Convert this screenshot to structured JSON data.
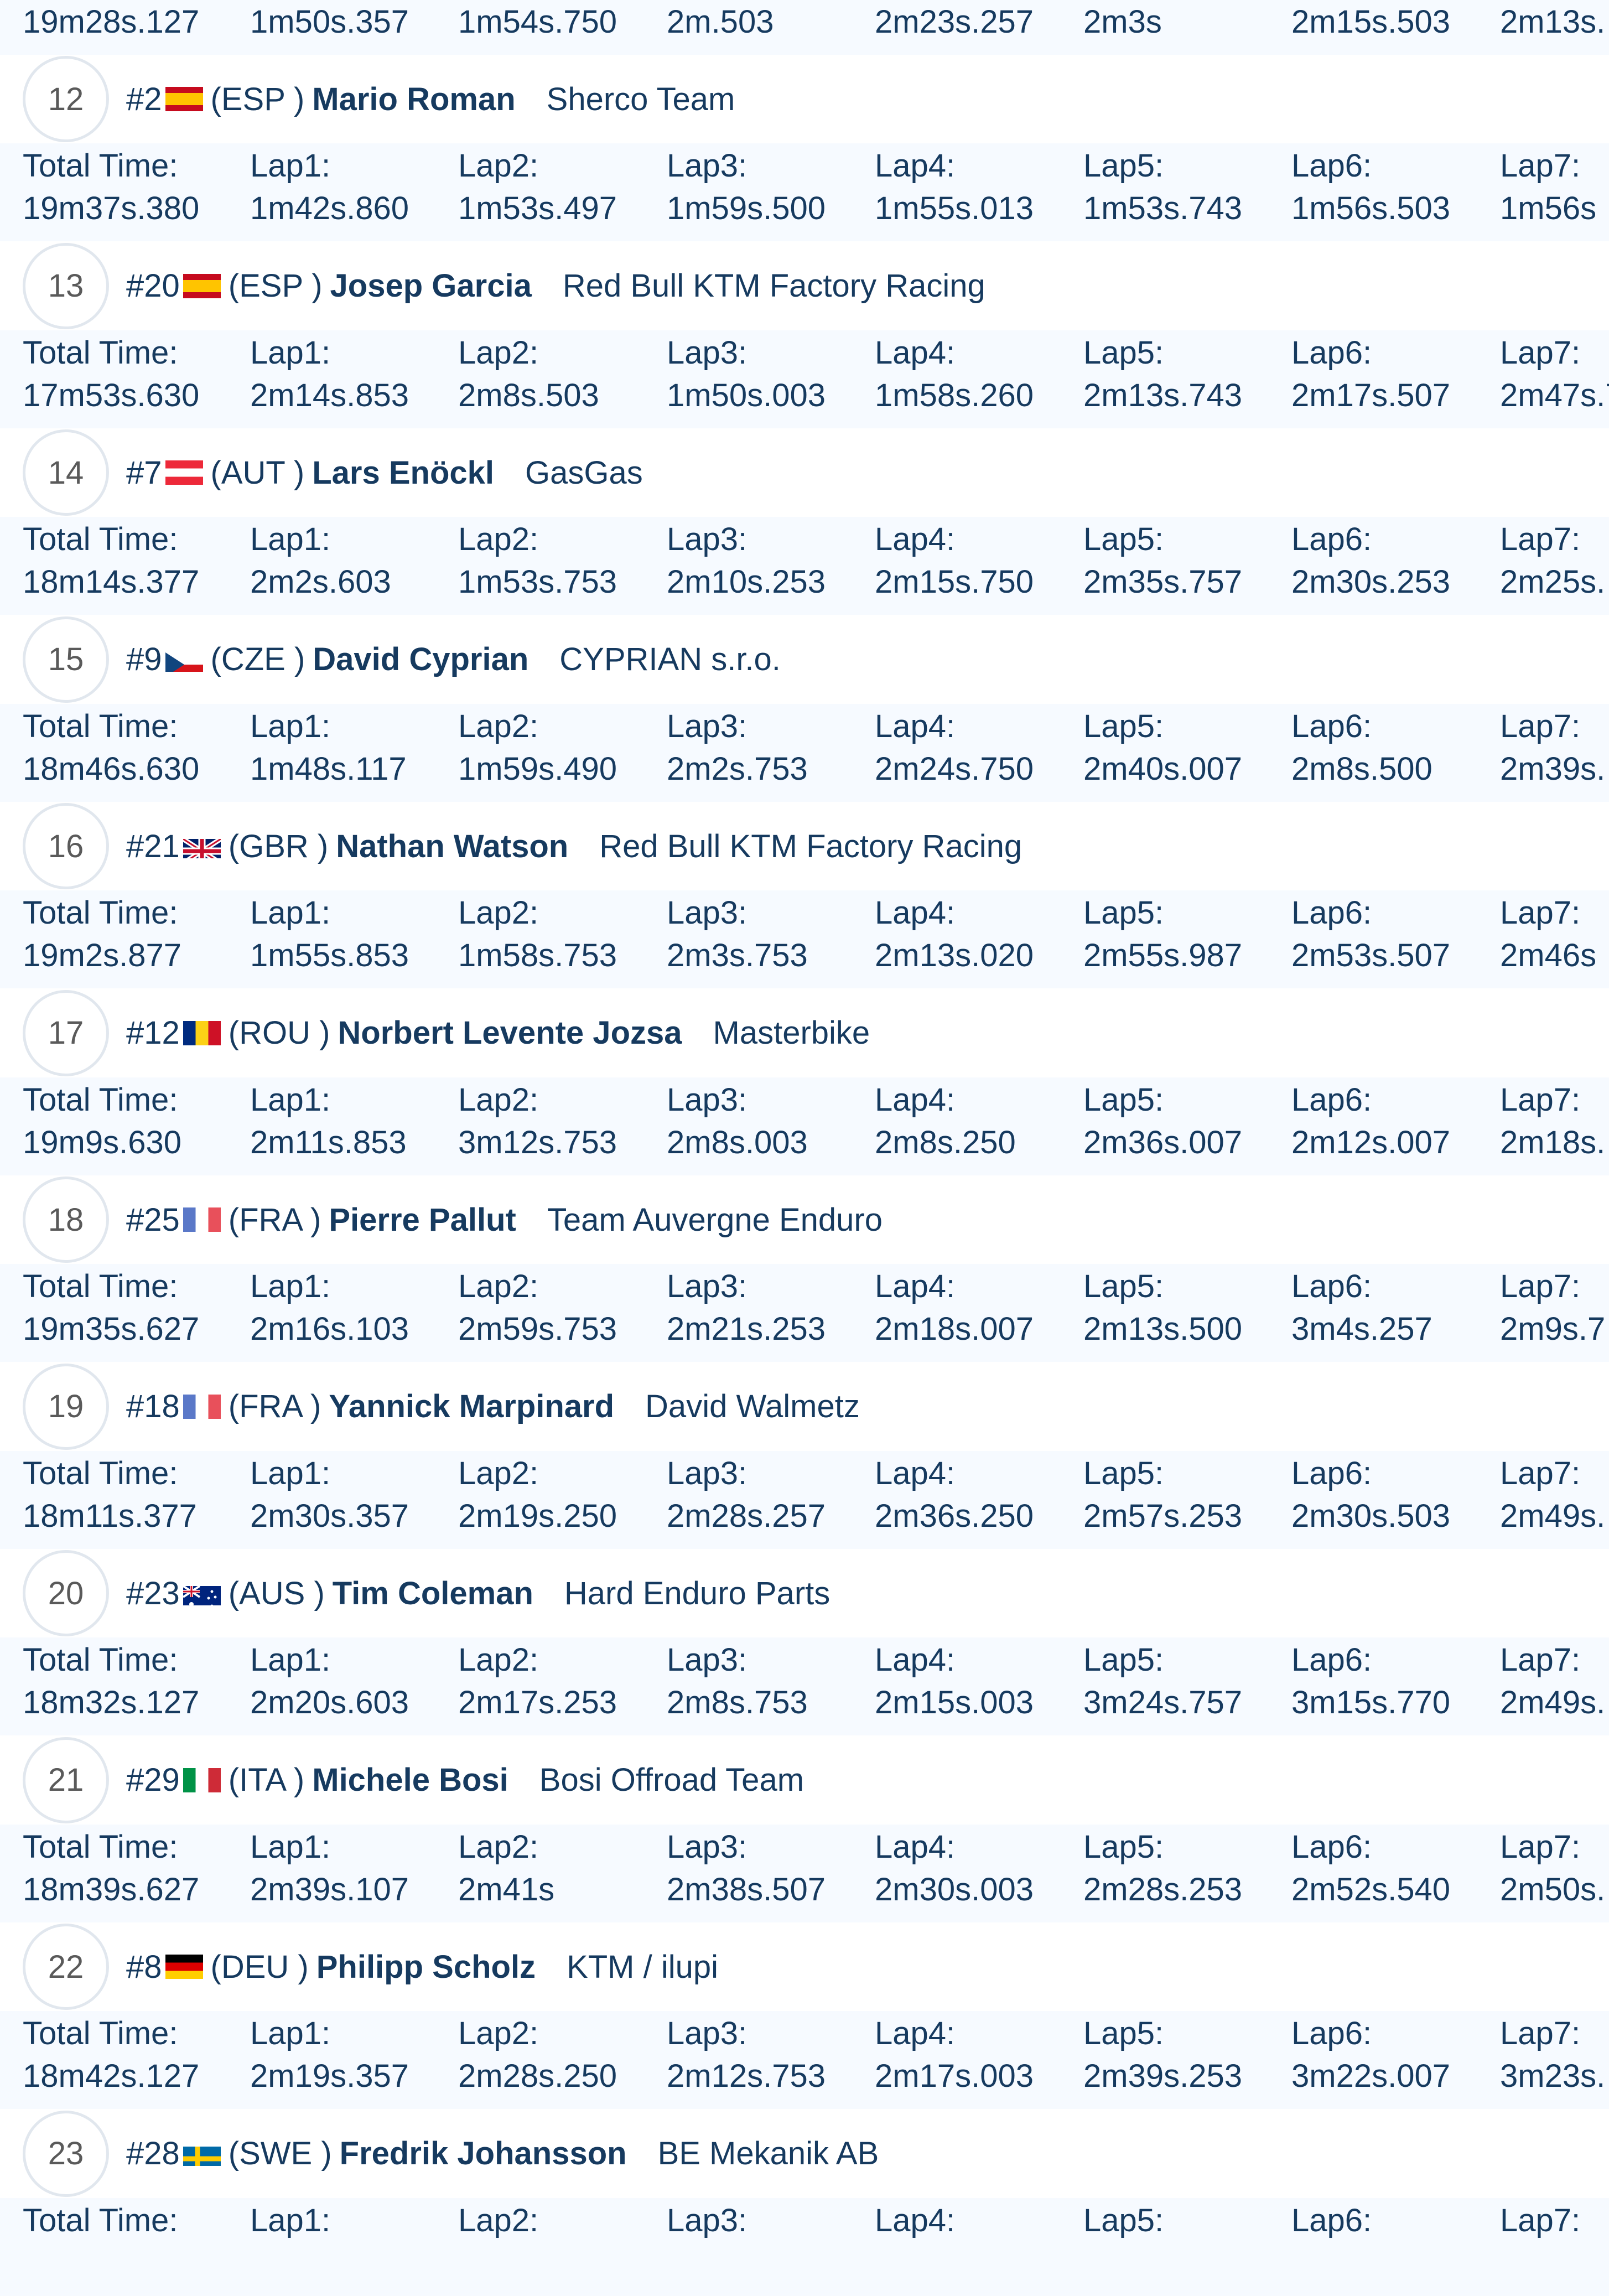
{
  "labels": [
    "Total Time:",
    "Lap1:",
    "Lap2:",
    "Lap3:",
    "Lap4:",
    "Lap5:",
    "Lap6:",
    "Lap7:"
  ],
  "top_partial_times": [
    "19m28s.127",
    "1m50s.357",
    "1m54s.750",
    "2m.503",
    "2m23s.257",
    "2m3s",
    "2m15s.503",
    "2m13s."
  ],
  "riders": [
    {
      "pos": "12",
      "num": "#2",
      "flag": "ESP",
      "country": "(ESP )",
      "name": "Mario Roman",
      "team": "Sherco Team",
      "times": [
        "19m37s.380",
        "1m42s.860",
        "1m53s.497",
        "1m59s.500",
        "1m55s.013",
        "1m53s.743",
        "1m56s.503",
        "1m56s"
      ]
    },
    {
      "pos": "13",
      "num": "#20",
      "flag": "ESP",
      "country": "(ESP )",
      "name": "Josep Garcia",
      "team": "Red Bull KTM Factory Racing",
      "times": [
        "17m53s.630",
        "2m14s.853",
        "2m8s.503",
        "1m50s.003",
        "1m58s.260",
        "2m13s.743",
        "2m17s.507",
        "2m47s.7"
      ]
    },
    {
      "pos": "14",
      "num": "#7",
      "flag": "AUT",
      "country": "(AUT )",
      "name": "Lars Enöckl",
      "team": "GasGas",
      "times": [
        "18m14s.377",
        "2m2s.603",
        "1m53s.753",
        "2m10s.253",
        "2m15s.750",
        "2m35s.757",
        "2m30s.253",
        "2m25s."
      ]
    },
    {
      "pos": "15",
      "num": "#9",
      "flag": "CZE",
      "country": "(CZE )",
      "name": "David Cyprian",
      "team": "CYPRIAN s.r.o.",
      "times": [
        "18m46s.630",
        "1m48s.117",
        "1m59s.490",
        "2m2s.753",
        "2m24s.750",
        "2m40s.007",
        "2m8s.500",
        "2m39s."
      ]
    },
    {
      "pos": "16",
      "num": "#21",
      "flag": "GBR",
      "country": "(GBR )",
      "name": "Nathan Watson",
      "team": "Red Bull KTM Factory Racing",
      "times": [
        "19m2s.877",
        "1m55s.853",
        "1m58s.753",
        "2m3s.753",
        "2m13s.020",
        "2m55s.987",
        "2m53s.507",
        "2m46s"
      ]
    },
    {
      "pos": "17",
      "num": "#12",
      "flag": "ROU",
      "country": "(ROU )",
      "name": "Norbert Levente Jozsa",
      "team": "Masterbike",
      "times": [
        "19m9s.630",
        "2m11s.853",
        "3m12s.753",
        "2m8s.003",
        "2m8s.250",
        "2m36s.007",
        "2m12s.007",
        "2m18s."
      ]
    },
    {
      "pos": "18",
      "num": "#25",
      "flag": "FRA",
      "country": "(FRA )",
      "name": "Pierre Pallut",
      "team": "Team Auvergne Enduro",
      "times": [
        "19m35s.627",
        "2m16s.103",
        "2m59s.753",
        "2m21s.253",
        "2m18s.007",
        "2m13s.500",
        "3m4s.257",
        "2m9s.7"
      ]
    },
    {
      "pos": "19",
      "num": "#18",
      "flag": "FRA",
      "country": "(FRA )",
      "name": "Yannick Marpinard",
      "team": "David Walmetz",
      "times": [
        "18m11s.377",
        "2m30s.357",
        "2m19s.250",
        "2m28s.257",
        "2m36s.250",
        "2m57s.253",
        "2m30s.503",
        "2m49s."
      ]
    },
    {
      "pos": "20",
      "num": "#23",
      "flag": "AUS",
      "country": "(AUS )",
      "name": "Tim Coleman",
      "team": "Hard Enduro Parts",
      "times": [
        "18m32s.127",
        "2m20s.603",
        "2m17s.253",
        "2m8s.753",
        "2m15s.003",
        "3m24s.757",
        "3m15s.770",
        "2m49s."
      ]
    },
    {
      "pos": "21",
      "num": "#29",
      "flag": "ITA",
      "country": "(ITA )",
      "name": "Michele Bosi",
      "team": "Bosi Offroad Team",
      "times": [
        "18m39s.627",
        "2m39s.107",
        "2m41s",
        "2m38s.507",
        "2m30s.003",
        "2m28s.253",
        "2m52s.540",
        "2m50s."
      ]
    },
    {
      "pos": "22",
      "num": "#8",
      "flag": "DEU",
      "country": "(DEU )",
      "name": "Philipp Scholz",
      "team": "KTM / ilupi",
      "times": [
        "18m42s.127",
        "2m19s.357",
        "2m28s.250",
        "2m12s.753",
        "2m17s.003",
        "2m39s.253",
        "3m22s.007",
        "3m23s."
      ]
    },
    {
      "pos": "23",
      "num": "#28",
      "flag": "SWE",
      "country": "(SWE )",
      "name": "Fredrik Johansson",
      "team": "BE Mekanik AB",
      "times": []
    }
  ],
  "colors": {
    "text": "#163a5f",
    "box_bg": "#f6faff",
    "position_text": "#5a5a5a",
    "circle_border": "#e1e7ee"
  }
}
